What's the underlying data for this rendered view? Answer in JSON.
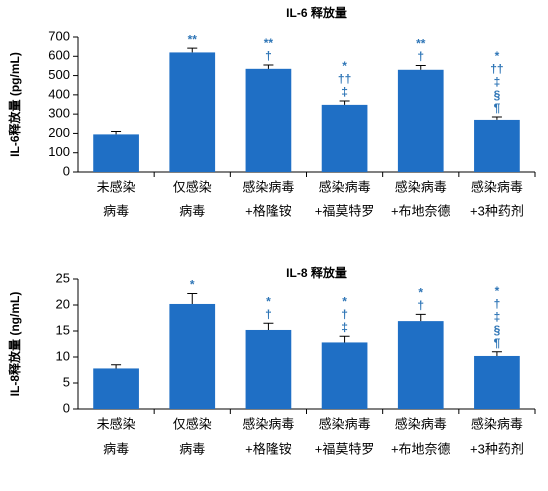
{
  "chart_data": [
    {
      "type": "bar",
      "title": "IL-6 释放量",
      "y_label": "IL-6释放量 (pg/mL)",
      "categories": [
        [
          "未感染",
          "病毒"
        ],
        [
          "仅感染",
          "病毒"
        ],
        [
          "感染病毒",
          "+格隆铵"
        ],
        [
          "感染病毒",
          "+福莫特罗"
        ],
        [
          "感染病毒",
          "+布地奈德"
        ],
        [
          "感染病毒",
          "+3种药剂"
        ]
      ],
      "values": [
        195,
        620,
        535,
        348,
        530,
        270
      ],
      "errors": [
        15,
        22,
        20,
        20,
        22,
        15
      ],
      "annotations": [
        [],
        [
          "**"
        ],
        [
          "**",
          "†"
        ],
        [
          "*",
          "††",
          "‡"
        ],
        [
          "**",
          "†"
        ],
        [
          "*",
          "††",
          "‡",
          "§",
          "¶"
        ]
      ],
      "color": "#1f6fc5",
      "annotation_color": "#2e75b6",
      "ylim": [
        0,
        700
      ],
      "yticks": [
        0,
        100,
        200,
        300,
        400,
        500,
        600,
        700
      ]
    },
    {
      "type": "bar",
      "title": "IL-8 释放量",
      "y_label": "IL-8释放量 (ng/mL)",
      "categories": [
        [
          "未感染",
          "病毒"
        ],
        [
          "仅感染",
          "病毒"
        ],
        [
          "感染病毒",
          "+格隆铵"
        ],
        [
          "感染病毒",
          "+福莫特罗"
        ],
        [
          "感染病毒",
          "+布地奈德"
        ],
        [
          "感染病毒",
          "+3种药剂"
        ]
      ],
      "values": [
        7.8,
        20.2,
        15.2,
        12.8,
        16.9,
        10.2
      ],
      "errors": [
        0.7,
        2,
        1.3,
        1.2,
        1.3,
        0.8
      ],
      "annotations": [
        [],
        [
          "*"
        ],
        [
          "*",
          "†"
        ],
        [
          "*",
          "†",
          "‡"
        ],
        [
          "*",
          "†"
        ],
        [
          "*",
          "†",
          "‡",
          "§",
          "¶"
        ]
      ],
      "color": "#1f6fc5",
      "annotation_color": "#2e75b6",
      "ylim": [
        0,
        25
      ],
      "yticks": [
        0,
        5,
        10,
        15,
        20,
        25
      ]
    }
  ]
}
